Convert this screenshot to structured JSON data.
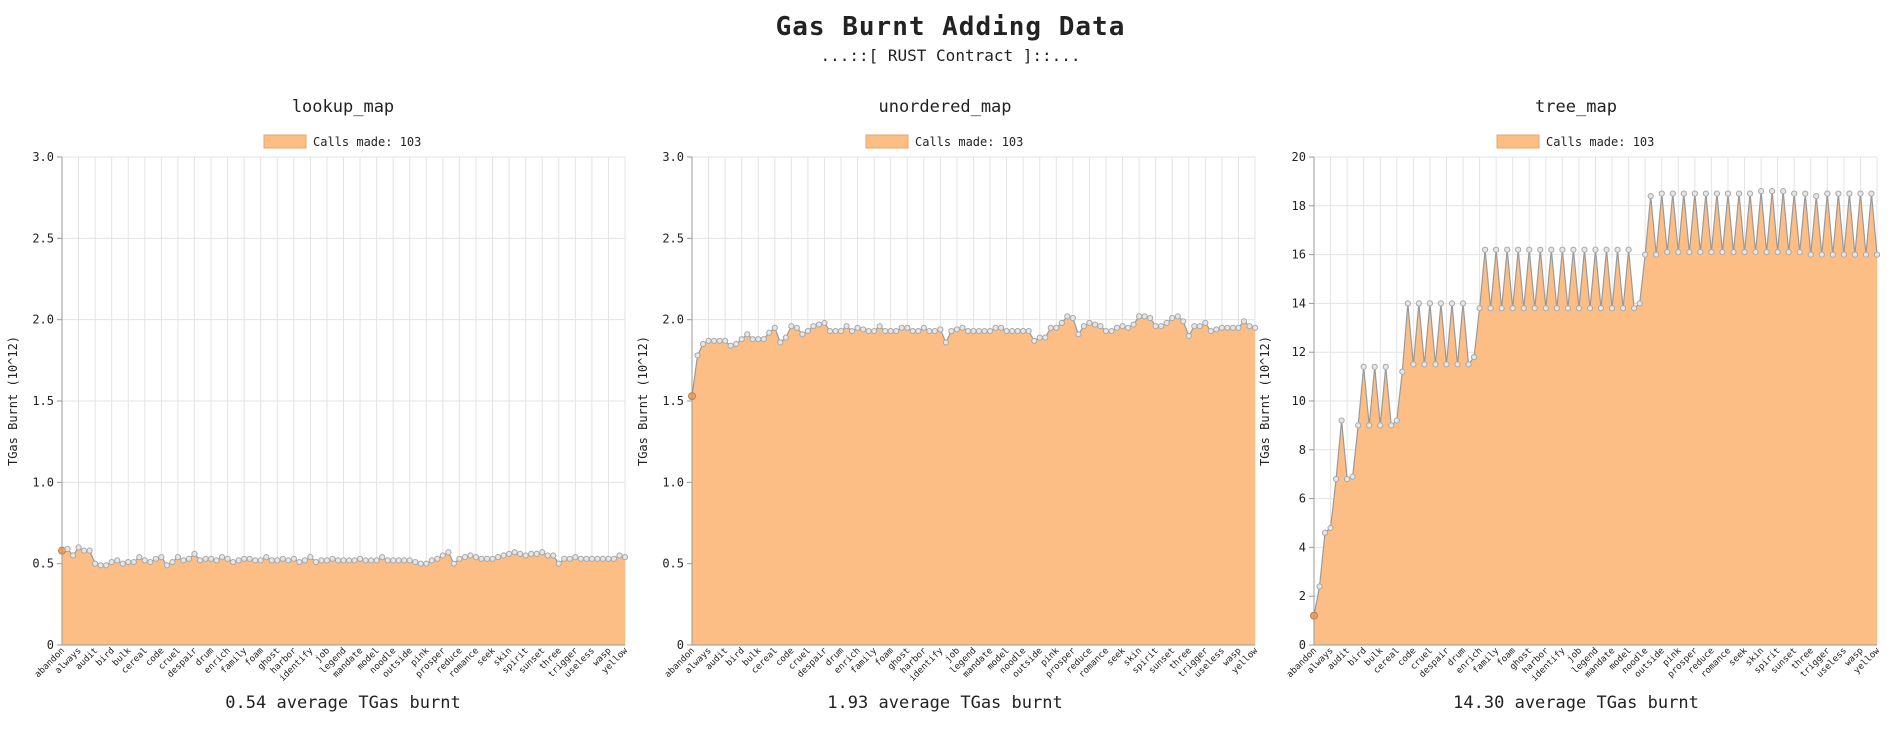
{
  "page": {
    "title": "Gas Burnt Adding Data",
    "subtitle": "...::[ RUST Contract ]::..."
  },
  "chart_data": [
    {
      "type": "area",
      "title": "lookup_map",
      "legend": "Calls made: 103",
      "ylabel": "TGas Burnt (10^12)",
      "ylim": [
        0,
        3.0
      ],
      "yticks": [
        "0",
        "0.5",
        "1.0",
        "1.5",
        "2.0",
        "2.5",
        "3.0"
      ],
      "footer": "0.54 average TGas burnt",
      "color": "#fdbe85",
      "x_labels": [
        "abandon",
        "always",
        "audit",
        "bird",
        "bulk",
        "cereal",
        "code",
        "cruel",
        "despair",
        "drum",
        "enrich",
        "family",
        "foam",
        "ghost",
        "harbor",
        "identify",
        "job",
        "legend",
        "mandate",
        "model",
        "noodle",
        "outside",
        "pink",
        "prosper",
        "reduce",
        "romance",
        "seek",
        "skin",
        "spirit",
        "sunset",
        "three",
        "trigger",
        "useless",
        "wasp",
        "yellow"
      ],
      "values": [
        0.58,
        0.59,
        0.55,
        0.6,
        0.58,
        0.58,
        0.5,
        0.49,
        0.49,
        0.51,
        0.52,
        0.5,
        0.51,
        0.51,
        0.54,
        0.52,
        0.51,
        0.53,
        0.54,
        0.49,
        0.51,
        0.54,
        0.52,
        0.53,
        0.56,
        0.52,
        0.53,
        0.53,
        0.52,
        0.54,
        0.53,
        0.51,
        0.52,
        0.53,
        0.53,
        0.52,
        0.52,
        0.54,
        0.52,
        0.52,
        0.53,
        0.52,
        0.53,
        0.51,
        0.52,
        0.54,
        0.51,
        0.52,
        0.52,
        0.53,
        0.52,
        0.52,
        0.52,
        0.52,
        0.53,
        0.52,
        0.52,
        0.52,
        0.54,
        0.52,
        0.52,
        0.52,
        0.52,
        0.52,
        0.51,
        0.5,
        0.5,
        0.52,
        0.53,
        0.55,
        0.57,
        0.5,
        0.53,
        0.54,
        0.55,
        0.54,
        0.53,
        0.53,
        0.53,
        0.54,
        0.55,
        0.56,
        0.57,
        0.56,
        0.55,
        0.56,
        0.56,
        0.57,
        0.55,
        0.55,
        0.5,
        0.53,
        0.53,
        0.54,
        0.53,
        0.53,
        0.53,
        0.53,
        0.53,
        0.53,
        0.53,
        0.55,
        0.54
      ]
    },
    {
      "type": "area",
      "title": "unordered_map",
      "legend": "Calls made: 103",
      "ylabel": "TGas Burnt (10^12)",
      "ylim": [
        0,
        3.0
      ],
      "yticks": [
        "0",
        "0.5",
        "1.0",
        "1.5",
        "2.0",
        "2.5",
        "3.0"
      ],
      "footer": "1.93 average TGas burnt",
      "color": "#fdbe85",
      "x_labels": [
        "abandon",
        "always",
        "audit",
        "bird",
        "bulk",
        "cereal",
        "code",
        "cruel",
        "despair",
        "drum",
        "enrich",
        "family",
        "foam",
        "ghost",
        "harbor",
        "identify",
        "job",
        "legend",
        "mandate",
        "model",
        "noodle",
        "outside",
        "pink",
        "prosper",
        "reduce",
        "romance",
        "seek",
        "skin",
        "spirit",
        "sunset",
        "three",
        "trigger",
        "useless",
        "wasp",
        "yellow"
      ],
      "values": [
        1.53,
        1.78,
        1.85,
        1.87,
        1.87,
        1.87,
        1.87,
        1.84,
        1.85,
        1.88,
        1.91,
        1.88,
        1.88,
        1.88,
        1.92,
        1.95,
        1.86,
        1.89,
        1.96,
        1.95,
        1.91,
        1.93,
        1.96,
        1.97,
        1.98,
        1.93,
        1.93,
        1.93,
        1.96,
        1.93,
        1.95,
        1.94,
        1.93,
        1.93,
        1.96,
        1.93,
        1.93,
        1.93,
        1.95,
        1.95,
        1.93,
        1.93,
        1.95,
        1.93,
        1.93,
        1.94,
        1.86,
        1.93,
        1.94,
        1.95,
        1.93,
        1.93,
        1.93,
        1.93,
        1.93,
        1.95,
        1.95,
        1.93,
        1.93,
        1.93,
        1.93,
        1.93,
        1.87,
        1.89,
        1.89,
        1.95,
        1.95,
        1.98,
        2.02,
        2.01,
        1.91,
        1.96,
        1.98,
        1.97,
        1.96,
        1.93,
        1.93,
        1.95,
        1.96,
        1.95,
        1.97,
        2.02,
        2.02,
        2.01,
        1.96,
        1.96,
        1.98,
        2.01,
        2.02,
        1.99,
        1.9,
        1.96,
        1.96,
        1.98,
        1.93,
        1.94,
        1.95,
        1.95,
        1.95,
        1.95,
        1.99,
        1.96,
        1.95
      ]
    },
    {
      "type": "area",
      "title": "tree_map",
      "legend": "Calls made: 103",
      "ylabel": "TGas Burnt (10^12)",
      "ylim": [
        0,
        20
      ],
      "yticks": [
        "0",
        "2",
        "4",
        "6",
        "8",
        "10",
        "12",
        "14",
        "16",
        "18",
        "20"
      ],
      "footer": "14.30 average TGas burnt",
      "color": "#fdbe85",
      "x_labels": [
        "abandon",
        "always",
        "audit",
        "bird",
        "bulk",
        "cereal",
        "code",
        "cruel",
        "despair",
        "drum",
        "enrich",
        "family",
        "foam",
        "ghost",
        "harbor",
        "identify",
        "job",
        "legend",
        "mandate",
        "model",
        "noodle",
        "outside",
        "pink",
        "prosper",
        "reduce",
        "romance",
        "seek",
        "skin",
        "spirit",
        "sunset",
        "three",
        "trigger",
        "useless",
        "wasp",
        "yellow"
      ],
      "values": [
        1.2,
        2.4,
        4.6,
        4.8,
        6.8,
        9.2,
        6.8,
        6.9,
        9.0,
        11.4,
        9.0,
        11.4,
        9.0,
        11.4,
        9.0,
        9.2,
        11.2,
        14.0,
        11.5,
        14.0,
        11.5,
        14.0,
        11.5,
        14.0,
        11.5,
        14.0,
        11.5,
        14.0,
        11.5,
        11.8,
        13.8,
        16.2,
        13.8,
        16.2,
        13.8,
        16.2,
        13.8,
        16.2,
        13.8,
        16.2,
        13.8,
        16.2,
        13.8,
        16.2,
        13.8,
        16.2,
        13.8,
        16.2,
        13.8,
        16.2,
        13.8,
        16.2,
        13.8,
        16.2,
        13.8,
        16.2,
        13.8,
        16.2,
        13.8,
        14.0,
        16.0,
        18.4,
        16.0,
        18.5,
        16.1,
        18.5,
        16.1,
        18.5,
        16.1,
        18.5,
        16.1,
        18.5,
        16.1,
        18.5,
        16.1,
        18.5,
        16.1,
        18.5,
        16.1,
        18.5,
        16.1,
        18.6,
        16.1,
        18.6,
        16.1,
        18.6,
        16.1,
        18.5,
        16.1,
        18.5,
        16.0,
        18.4,
        16.0,
        18.5,
        16.0,
        18.5,
        16.0,
        18.5,
        16.0,
        18.5,
        16.0,
        18.5,
        16.0
      ]
    }
  ]
}
